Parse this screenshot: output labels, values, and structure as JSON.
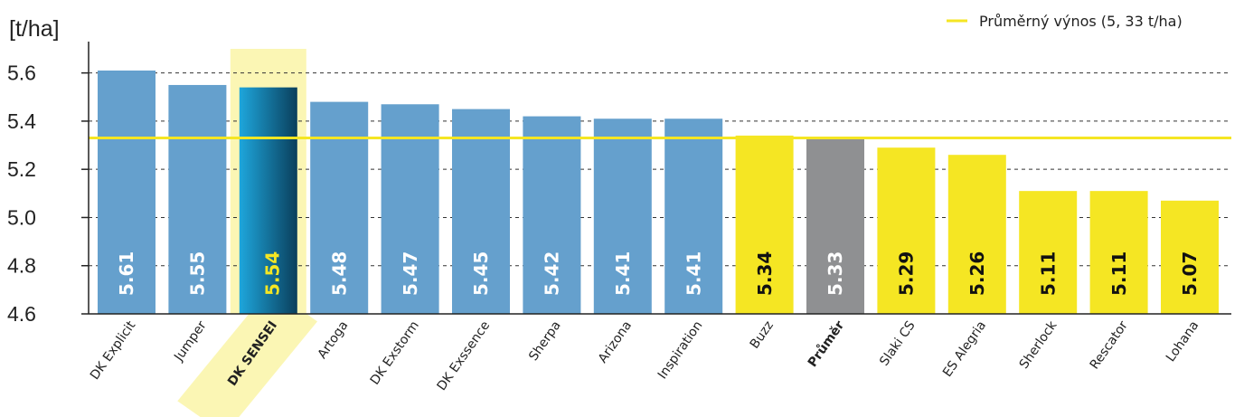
{
  "chart_data": {
    "type": "bar",
    "ylabel": "[t/ha]",
    "ylim": [
      4.6,
      5.7
    ],
    "yticks": [
      4.6,
      4.8,
      5.0,
      5.2,
      5.4,
      5.6
    ],
    "ytick_labels": [
      "4.6",
      "4.8",
      "5.0",
      "5.2",
      "5.4",
      "5.6"
    ],
    "grid": true,
    "legend_position": "top-right",
    "reference_line": {
      "value": 5.33,
      "color": "#f5e623",
      "label": "Průměrný výnos (5, 33 t/ha)"
    },
    "highlight_category": "DK SENSEI",
    "colors": {
      "blue": "#65a0cd",
      "yellow": "#f5e623",
      "gray": "#8f9092",
      "highlight_dark": "#0a3f5c",
      "highlight_light": "#1ea6dc",
      "band": "#fbf6b4"
    },
    "categories": [
      "DK Explicit",
      "Jumper",
      "DK SENSEI",
      "Artoga",
      "DK Exstorm",
      "DK Exssence",
      "Sherpa",
      "Arizona",
      "Inspiration",
      "Buzz",
      "Průměr",
      "Slaki CS",
      "ES Alegria",
      "Sherlock",
      "Rescator",
      "Lohana"
    ],
    "values": [
      5.61,
      5.55,
      5.54,
      5.48,
      5.47,
      5.45,
      5.42,
      5.41,
      5.41,
      5.34,
      5.33,
      5.29,
      5.26,
      5.11,
      5.11,
      5.07
    ],
    "value_labels": [
      "5.61",
      "5.55",
      "5.54",
      "5.48",
      "5.47",
      "5.45",
      "5.42",
      "5.41",
      "5.41",
      "5.34",
      "5.33",
      "5.29",
      "5.26",
      "5.11",
      "5.11",
      "5.07"
    ],
    "bar_colors": [
      "blue",
      "blue",
      "highlight",
      "blue",
      "blue",
      "blue",
      "blue",
      "blue",
      "blue",
      "yellow",
      "gray",
      "yellow",
      "yellow",
      "yellow",
      "yellow",
      "yellow"
    ],
    "bold_categories": [
      "DK SENSEI",
      "Průměr"
    ]
  }
}
